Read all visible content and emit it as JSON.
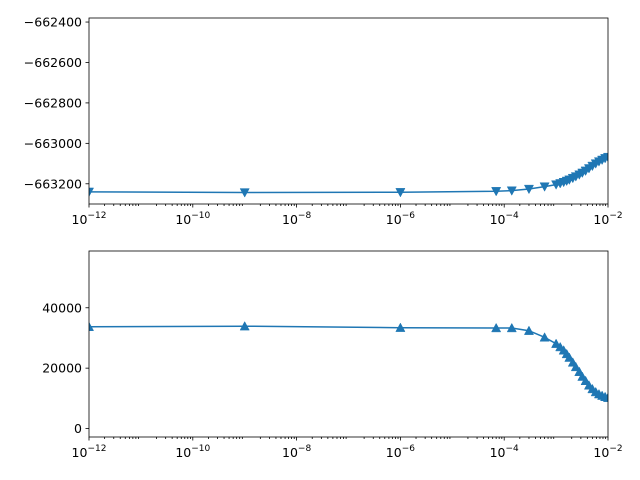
{
  "chart_data": [
    {
      "type": "line",
      "xscale": "log",
      "xlim": [
        1e-12,
        0.01
      ],
      "ylim": [
        -663300,
        -662380
      ],
      "xticks": [
        1e-12,
        1e-10,
        1e-08,
        1e-06,
        0.0001,
        0.01
      ],
      "xtick_labels": [
        {
          "base": "10",
          "exp": "−12"
        },
        {
          "base": "10",
          "exp": "−10"
        },
        {
          "base": "10",
          "exp": "−8"
        },
        {
          "base": "10",
          "exp": "−6"
        },
        {
          "base": "10",
          "exp": "−4"
        },
        {
          "base": "10",
          "exp": "−2"
        }
      ],
      "yticks": [
        -662400,
        -662600,
        -662800,
        -663000,
        -663200
      ],
      "ytick_labels": [
        "−662400",
        "−662600",
        "−662800",
        "−663000",
        "−663200"
      ],
      "marker": "triangle_down",
      "color": "#1f77b4",
      "x": [
        1e-12,
        1e-09,
        1e-06,
        7e-05,
        0.00014,
        0.0003,
        0.0006,
        0.001,
        0.0012,
        0.0014,
        0.0016,
        0.0018,
        0.0021,
        0.0024,
        0.0028,
        0.0032,
        0.0037,
        0.0043,
        0.005,
        0.0058,
        0.0067,
        0.0077,
        0.0088,
        0.01
      ],
      "y": [
        -663240,
        -663243,
        -663242,
        -663237,
        -663234,
        -663226,
        -663214,
        -663204,
        -663198,
        -663192,
        -663186,
        -663180,
        -663172,
        -663164,
        -663155,
        -663146,
        -663136,
        -663124,
        -663112,
        -663100,
        -663090,
        -663082,
        -663074,
        -663068
      ]
    },
    {
      "type": "line",
      "xscale": "log",
      "xlim": [
        1e-12,
        0.01
      ],
      "ylim": [
        -2800,
        58800
      ],
      "xticks": [
        1e-12,
        1e-10,
        1e-08,
        1e-06,
        0.0001,
        0.01
      ],
      "xtick_labels": [
        {
          "base": "10",
          "exp": "−12"
        },
        {
          "base": "10",
          "exp": "−10"
        },
        {
          "base": "10",
          "exp": "−8"
        },
        {
          "base": "10",
          "exp": "−6"
        },
        {
          "base": "10",
          "exp": "−4"
        },
        {
          "base": "10",
          "exp": "−2"
        }
      ],
      "yticks": [
        0,
        20000,
        40000
      ],
      "ytick_labels": [
        "0",
        "20000",
        "40000"
      ],
      "marker": "triangle_up",
      "color": "#1f77b4",
      "x": [
        1e-12,
        1e-09,
        1e-06,
        7e-05,
        0.00014,
        0.0003,
        0.0006,
        0.001,
        0.0012,
        0.0014,
        0.0016,
        0.0018,
        0.0021,
        0.0024,
        0.0028,
        0.0032,
        0.0037,
        0.0043,
        0.005,
        0.0058,
        0.0067,
        0.0077,
        0.0088,
        0.01
      ],
      "y": [
        33700,
        33900,
        33400,
        33300,
        33300,
        32400,
        30200,
        28100,
        27000,
        25900,
        24700,
        23500,
        21900,
        20400,
        18800,
        17200,
        15800,
        14300,
        13100,
        12100,
        11400,
        10900,
        10500,
        10200
      ]
    }
  ]
}
